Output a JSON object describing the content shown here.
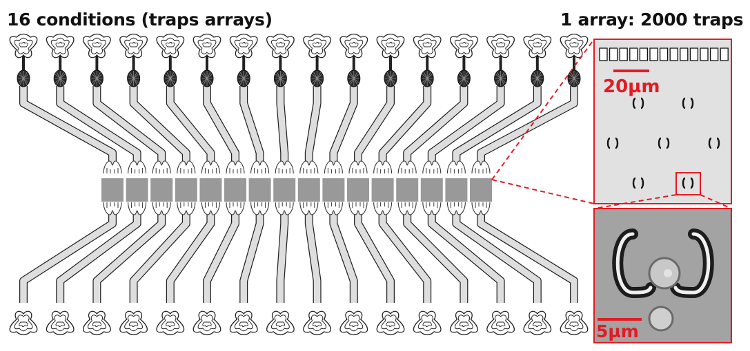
{
  "left_title": "16 conditions (traps arrays)",
  "right_title": "1 array: 2000 traps",
  "scale_bar_top": "20µm",
  "scale_bar_bottom": "5µm",
  "highlight_color": "#e21b23",
  "channel_count": 16
}
